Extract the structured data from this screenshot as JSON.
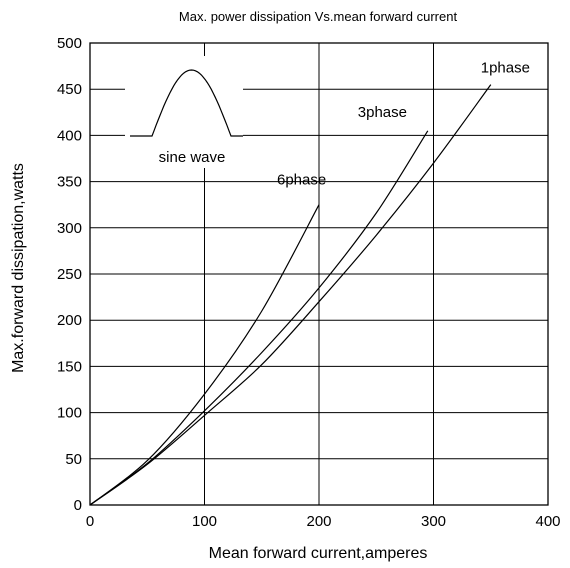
{
  "chart_data": {
    "type": "line",
    "title": "Max. power dissipation Vs.mean forward current",
    "xlabel": "Mean forward  current,amperes",
    "ylabel": "Max.forward dissipation,watts",
    "xlim": [
      0,
      400
    ],
    "ylim": [
      0,
      500
    ],
    "x_ticks": [
      "0",
      "100",
      "200",
      "300",
      "400"
    ],
    "y_ticks": [
      "0",
      "50",
      "100",
      "150",
      "200",
      "250",
      "300",
      "350",
      "400",
      "450",
      "500"
    ],
    "grid": true,
    "series": [
      {
        "name": "1phase",
        "x": [
          0,
          50,
          100,
          150,
          200,
          250,
          300,
          350
        ],
        "y": [
          0,
          44,
          97,
          152,
          220,
          292,
          370,
          455
        ]
      },
      {
        "name": "3phase",
        "x": [
          0,
          50,
          100,
          150,
          200,
          250,
          295
        ],
        "y": [
          0,
          45,
          102,
          165,
          235,
          316,
          405
        ]
      },
      {
        "name": "6phase",
        "x": [
          0,
          50,
          100,
          150,
          200
        ],
        "y": [
          0,
          48,
          120,
          210,
          325
        ]
      }
    ],
    "inset": {
      "label": "sine wave"
    },
    "colors": {
      "line": "#000000",
      "background": "#ffffff"
    }
  }
}
